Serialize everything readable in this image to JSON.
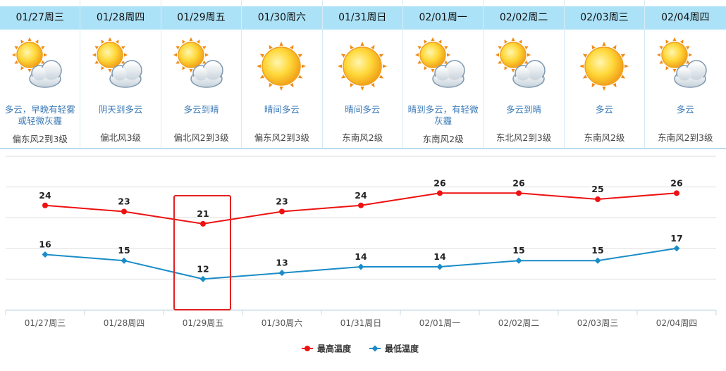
{
  "days": [
    {
      "date": "01/27周三",
      "icon": "sun-cloud-icon",
      "desc": "多云，早晚有轻雾或轻微灰霾",
      "wind": "偏东风2到3级"
    },
    {
      "date": "01/28周四",
      "icon": "sun-cloud-icon",
      "desc": "阴天到多云",
      "wind": "偏北风3级"
    },
    {
      "date": "01/29周五",
      "icon": "sun-cloud-icon",
      "desc": "多云到晴",
      "wind": "偏北风2到3级"
    },
    {
      "date": "01/30周六",
      "icon": "sun-icon",
      "desc": "晴间多云",
      "wind": "偏东风2到3级"
    },
    {
      "date": "01/31周日",
      "icon": "sun-icon",
      "desc": "晴间多云",
      "wind": "东南风2级"
    },
    {
      "date": "02/01周一",
      "icon": "sun-cloud-icon",
      "desc": "晴到多云，有轻微灰霾",
      "wind": "东南风2级"
    },
    {
      "date": "02/02周二",
      "icon": "sun-cloud-icon",
      "desc": "多云到晴",
      "wind": "东北风2到3级"
    },
    {
      "date": "02/03周三",
      "icon": "sun-icon",
      "desc": "多云",
      "wind": "东南风2级"
    },
    {
      "date": "02/04周四",
      "icon": "sun-cloud-icon",
      "desc": "多云",
      "wind": "东南风2到3级"
    }
  ],
  "chart_data": {
    "type": "line",
    "categories": [
      "01/27周三",
      "01/28周四",
      "01/29周五",
      "01/30周六",
      "01/31周日",
      "02/01周一",
      "02/02周二",
      "02/03周三",
      "02/04周四"
    ],
    "series": [
      {
        "name": "最高温度",
        "color": "#ee1111",
        "values": [
          24,
          23,
          21,
          23,
          24,
          26,
          26,
          25,
          26
        ]
      },
      {
        "name": "最低温度",
        "color": "#1a8cc7",
        "values": [
          16,
          15,
          12,
          13,
          14,
          14,
          15,
          15,
          17
        ]
      }
    ],
    "ylim": [
      7,
      32
    ],
    "grid": true,
    "legend": "bottom-center",
    "highlight": {
      "category": "01/29周五",
      "color": "#e32020"
    }
  },
  "colors": {
    "header_bg": "#ace2f7",
    "desc_text": "#3a79b6",
    "grid": "#dddddd"
  }
}
